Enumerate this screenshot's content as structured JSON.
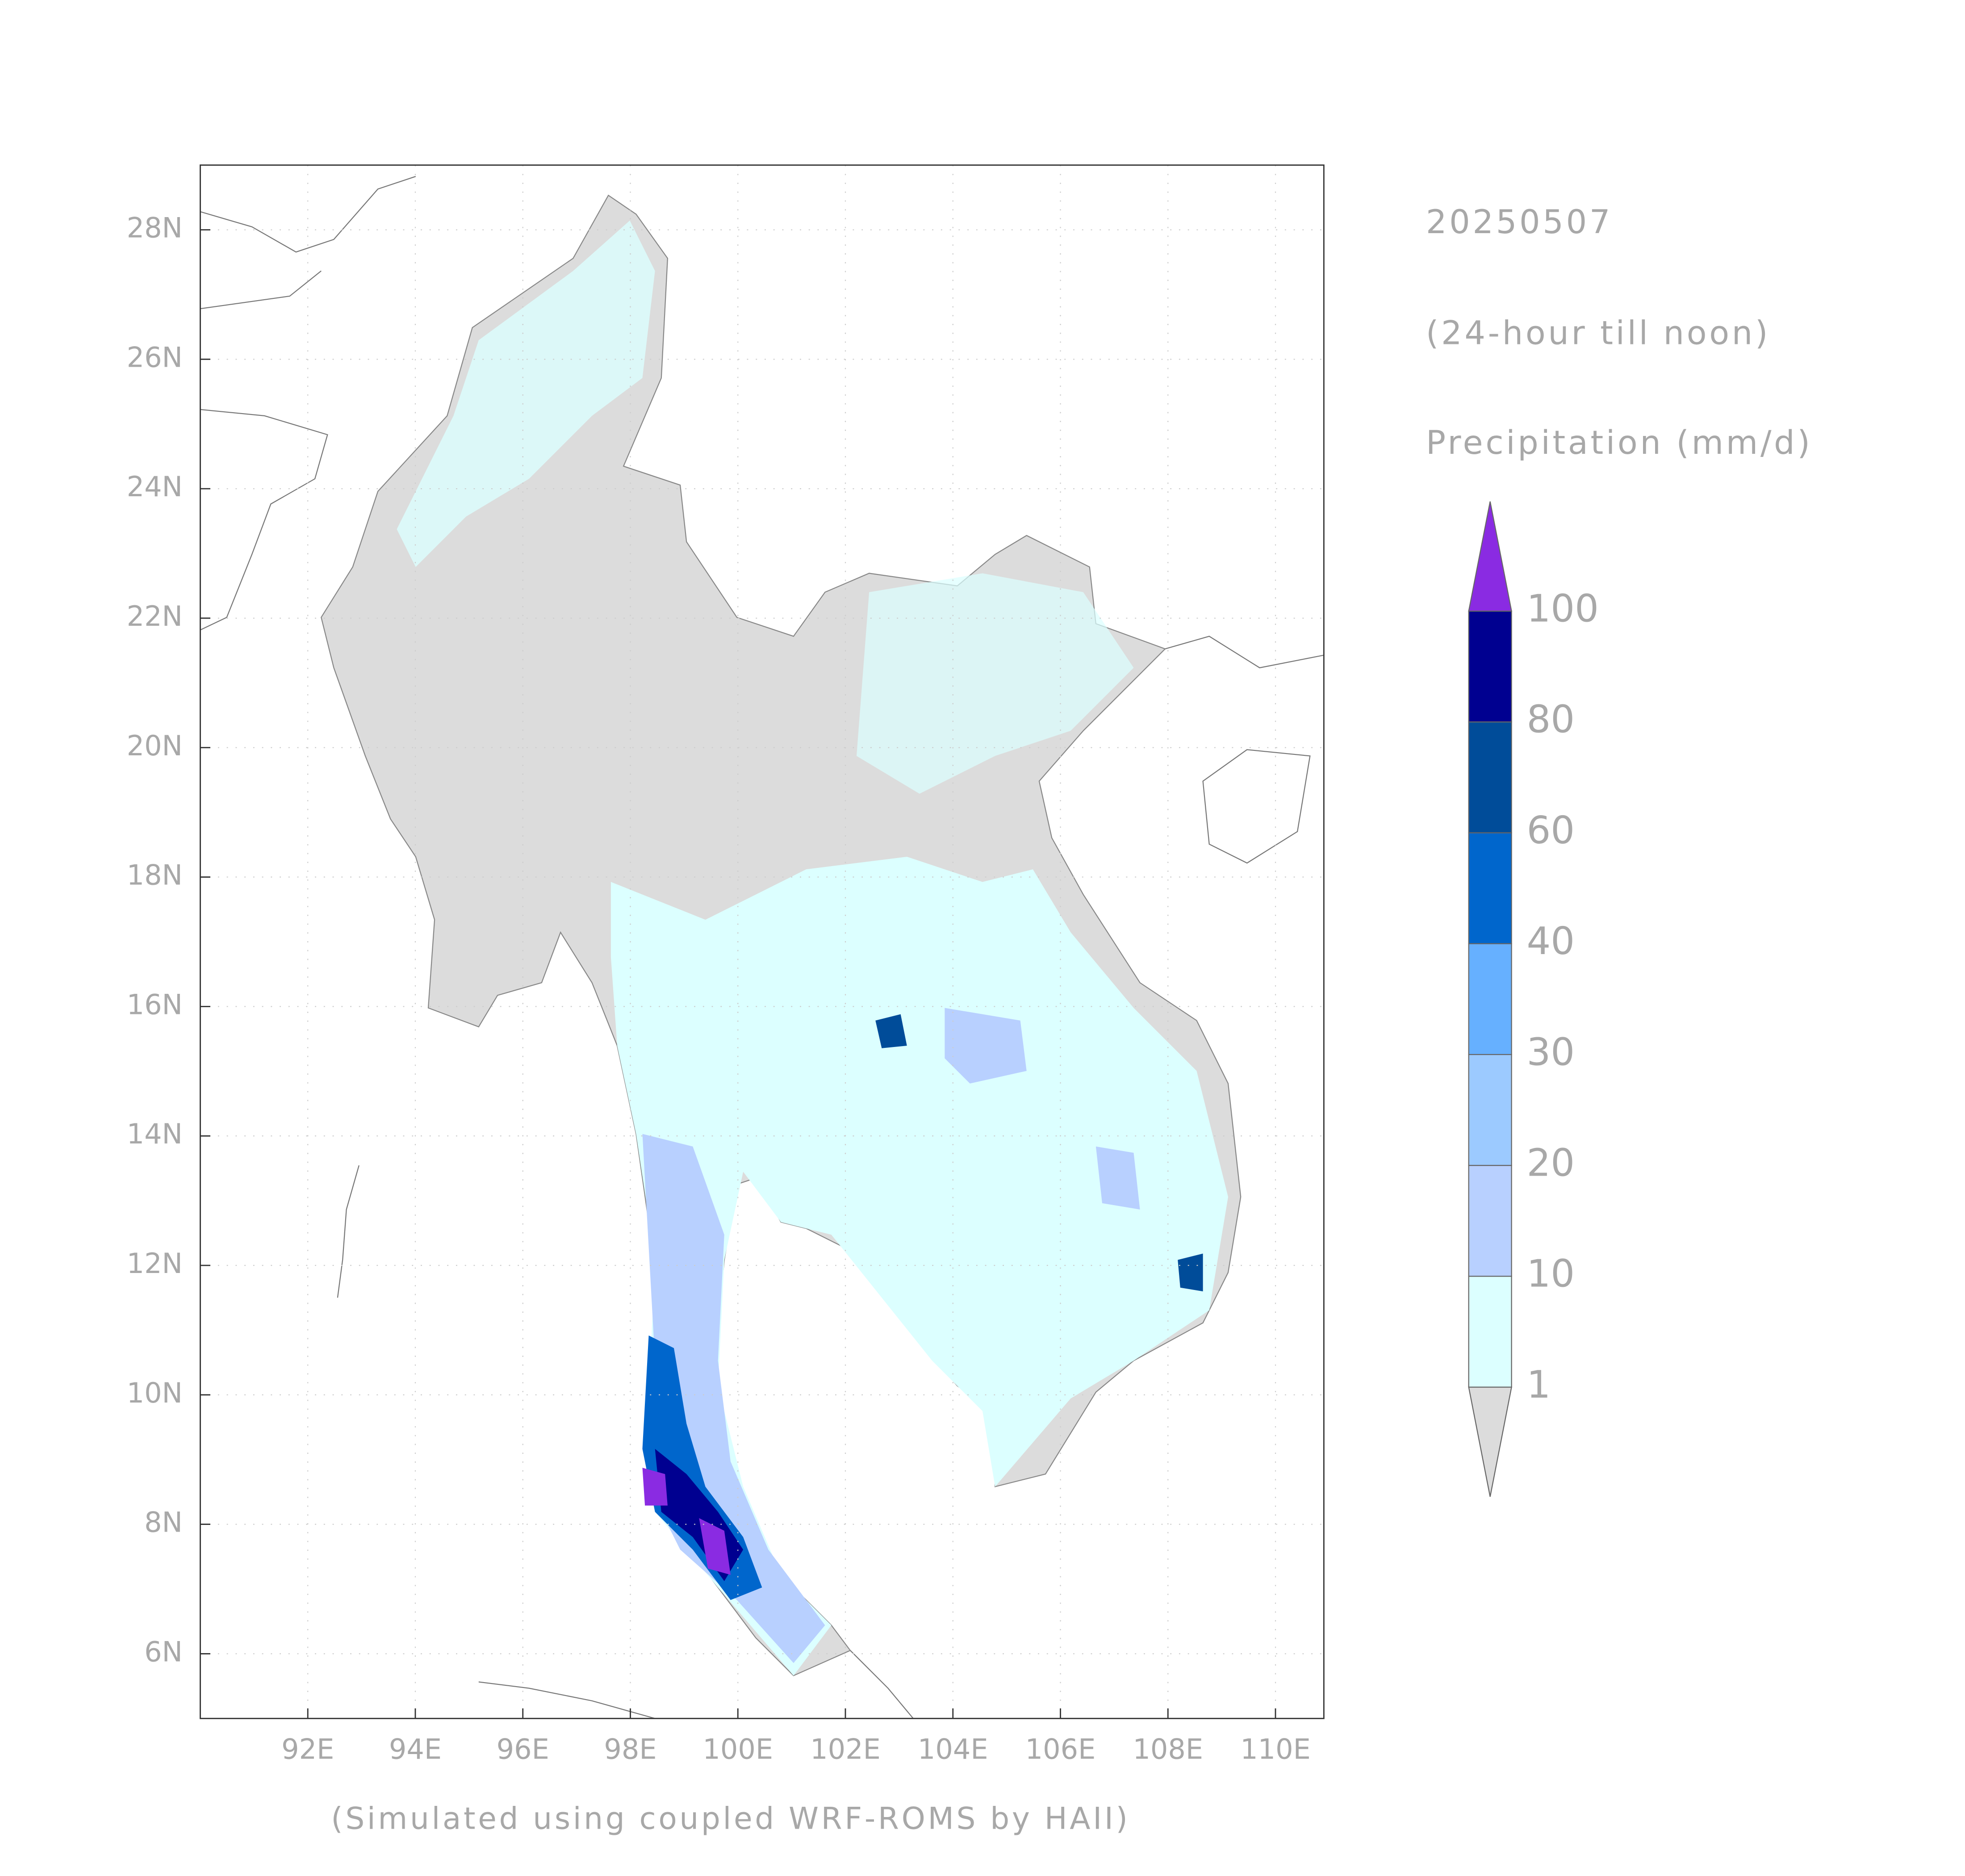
{
  "header": {
    "date": "20250507",
    "period": "(24-hour till noon)",
    "variable": "Precipitation (mm/d)"
  },
  "map": {
    "xlim": [
      90,
      110.9
    ],
    "ylim": [
      5,
      29
    ],
    "xticks": [
      {
        "value": 92,
        "label": "92E"
      },
      {
        "value": 94,
        "label": "94E"
      },
      {
        "value": 96,
        "label": "96E"
      },
      {
        "value": 98,
        "label": "98E"
      },
      {
        "value": 100,
        "label": "100E"
      },
      {
        "value": 102,
        "label": "102E"
      },
      {
        "value": 104,
        "label": "104E"
      },
      {
        "value": 106,
        "label": "106E"
      },
      {
        "value": 108,
        "label": "108E"
      },
      {
        "value": 110,
        "label": "110E"
      }
    ],
    "yticks": [
      {
        "value": 6,
        "label": "6N"
      },
      {
        "value": 8,
        "label": "8N"
      },
      {
        "value": 10,
        "label": "10N"
      },
      {
        "value": 12,
        "label": "12N"
      },
      {
        "value": 14,
        "label": "14N"
      },
      {
        "value": 16,
        "label": "16N"
      },
      {
        "value": 18,
        "label": "18N"
      },
      {
        "value": 20,
        "label": "20N"
      },
      {
        "value": 22,
        "label": "22N"
      },
      {
        "value": 24,
        "label": "24N"
      },
      {
        "value": 26,
        "label": "26N"
      },
      {
        "value": 28,
        "label": "28N"
      }
    ]
  },
  "colorbar": {
    "levels": [
      1,
      10,
      20,
      30,
      40,
      60,
      80,
      100
    ],
    "colors": [
      "#dcdcdc",
      "#dcffff",
      "#b8d0ff",
      "#9ccaff",
      "#66b0ff",
      "#0066cc",
      "#004c99",
      "#000090",
      "#8a2be2"
    ]
  },
  "footer": "(Simulated using coupled WRF-ROMS by HAII)"
}
